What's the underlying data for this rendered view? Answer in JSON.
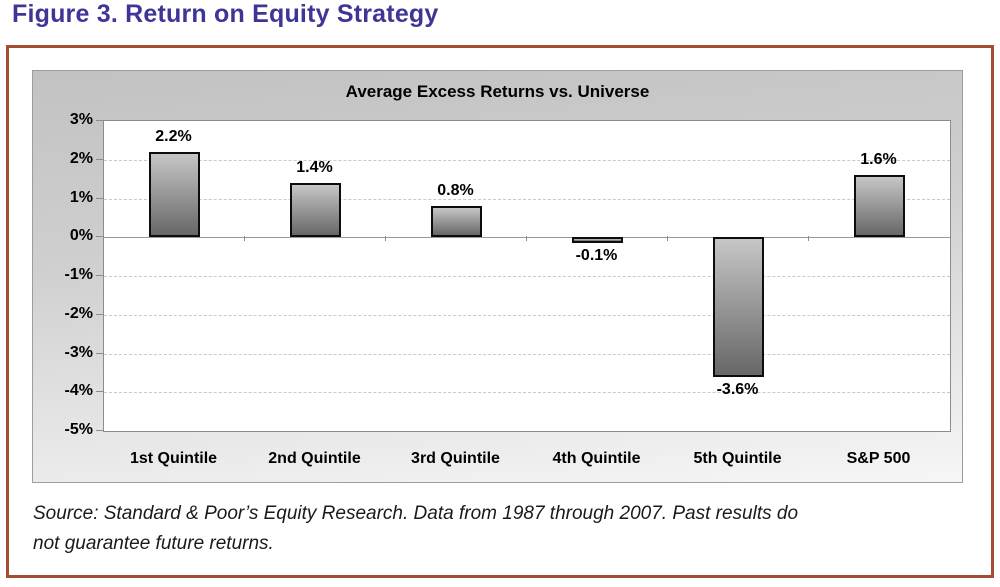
{
  "figure": {
    "title": "Figure 3. Return on Equity Strategy",
    "source_lines": [
      "Source: Standard & Poor’s Equity Research. Data from 1987 through 2007. Past results do",
      "not guarantee future returns."
    ]
  },
  "colors": {
    "figure_title": "#3e3596",
    "frame_border": "#a34e33",
    "chart_bg_top": "#c2c2c2",
    "chart_bg_bottom": "#f6f6f6",
    "bar_gradient_top": "#c6c6c6",
    "bar_gradient_bottom": "#676767",
    "bar_border": "#0d0d0d",
    "gridline": "#c9c9c9",
    "zero_line": "#999999"
  },
  "chart_data": {
    "type": "bar",
    "title": "Average Excess Returns vs. Universe",
    "categories": [
      "1st Quintile",
      "2nd Quintile",
      "3rd Quintile",
      "4th Quintile",
      "5th Quintile",
      "S&P 500"
    ],
    "values": [
      2.2,
      1.4,
      0.8,
      -0.1,
      -3.6,
      1.6
    ],
    "data_labels": [
      "2.2%",
      "1.4%",
      "0.8%",
      "-0.1%",
      "-3.6%",
      "1.6%"
    ],
    "ylabel": "",
    "xlabel": "",
    "ylim": [
      -5,
      3
    ],
    "ytick_values": [
      3,
      2,
      1,
      0,
      -1,
      -2,
      -3,
      -4,
      -5
    ],
    "ytick_labels": [
      "3%",
      "2%",
      "1%",
      "0%",
      "-1%",
      "-2%",
      "-3%",
      "-4%",
      "-5%"
    ],
    "grid": "horizontal-dashed",
    "legend": "none"
  }
}
